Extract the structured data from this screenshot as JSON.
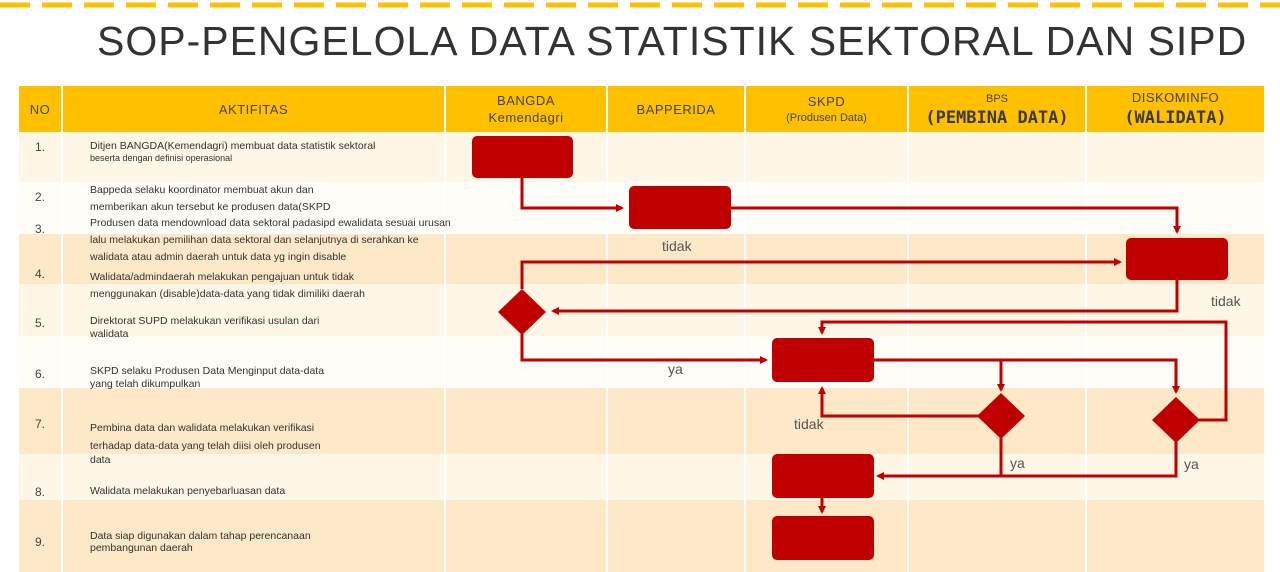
{
  "title": "SOP-PENGELOLA DATA STATISTIK SEKTORAL DAN SIPD",
  "header": {
    "no": "NO",
    "aktifitas": "AKTIFITAS",
    "bangda_1": "BANGDA",
    "bangda_2": "Kemendagri",
    "bapperida": "BAPPERIDA",
    "skpd_1": "SKPD",
    "skpd_2": "(Produsen Data)",
    "bps_1": "BPS",
    "bps_2": "(PEMBINA DATA)",
    "diskominfo_1": "DISKOMINFO",
    "diskominfo_2": "(WALIDATA)"
  },
  "rows": [
    {
      "no": "1.",
      "line1": "Ditjen BANGDA(Kemendagri) membuat data statistik sektoral",
      "line2": "beserta dengan definisi operasional"
    },
    {
      "no": "2.",
      "line1": "Bappeda selaku koordinator membuat akun dan",
      "line2": "memberikan akun tersebut ke produsen data(SKPD"
    },
    {
      "no": "3.",
      "line1": "Produsen data mendownload data sektoral padasipd ewalidata sesuai urusan",
      "line2": "lalu melakukan pemilihan data sektoral dan selanjutnya di serahkan ke",
      "line3": "walidata atau admin daerah untuk data yg ingin disable"
    },
    {
      "no": "4.",
      "line1": "Walidata/admindaerah melakukan pengajuan untuk tidak",
      "line2": "menggunakan (disable)data-data yang tidak dimiliki daerah"
    },
    {
      "no": "5.",
      "line1": "Direktorat SUPD melakukan verifikasi usulan dari",
      "line2": "walidata"
    },
    {
      "no": "6.",
      "line1": "SKPD selaku Produsen Data Menginput data-data",
      "line2": "yang telah dikumpulkan"
    },
    {
      "no": "7.",
      "line1": "Pembina data dan walidata melakukan verifikasi",
      "line2": "terhadap data-data yang telah diisi oleh produsen",
      "line3": "data"
    },
    {
      "no": "8.",
      "line1": "Walidata melakukan penyebarluasan data"
    },
    {
      "no": "9.",
      "line1": "Data siap digunakan dalam tahap perencanaan",
      "line2": "pembangunan daerah"
    }
  ],
  "labels": {
    "tidak_1": "tidak",
    "tidak_2": "tidak",
    "tidak_3": "tidak",
    "ya_1": "ya",
    "ya_2": "ya",
    "ya_3": "ya"
  },
  "colors": {
    "header": "#ffc000",
    "band_light": "#fef6e6",
    "band_dark": "#fde9c8",
    "shape": "#c00000",
    "arrow": "#c00000"
  }
}
